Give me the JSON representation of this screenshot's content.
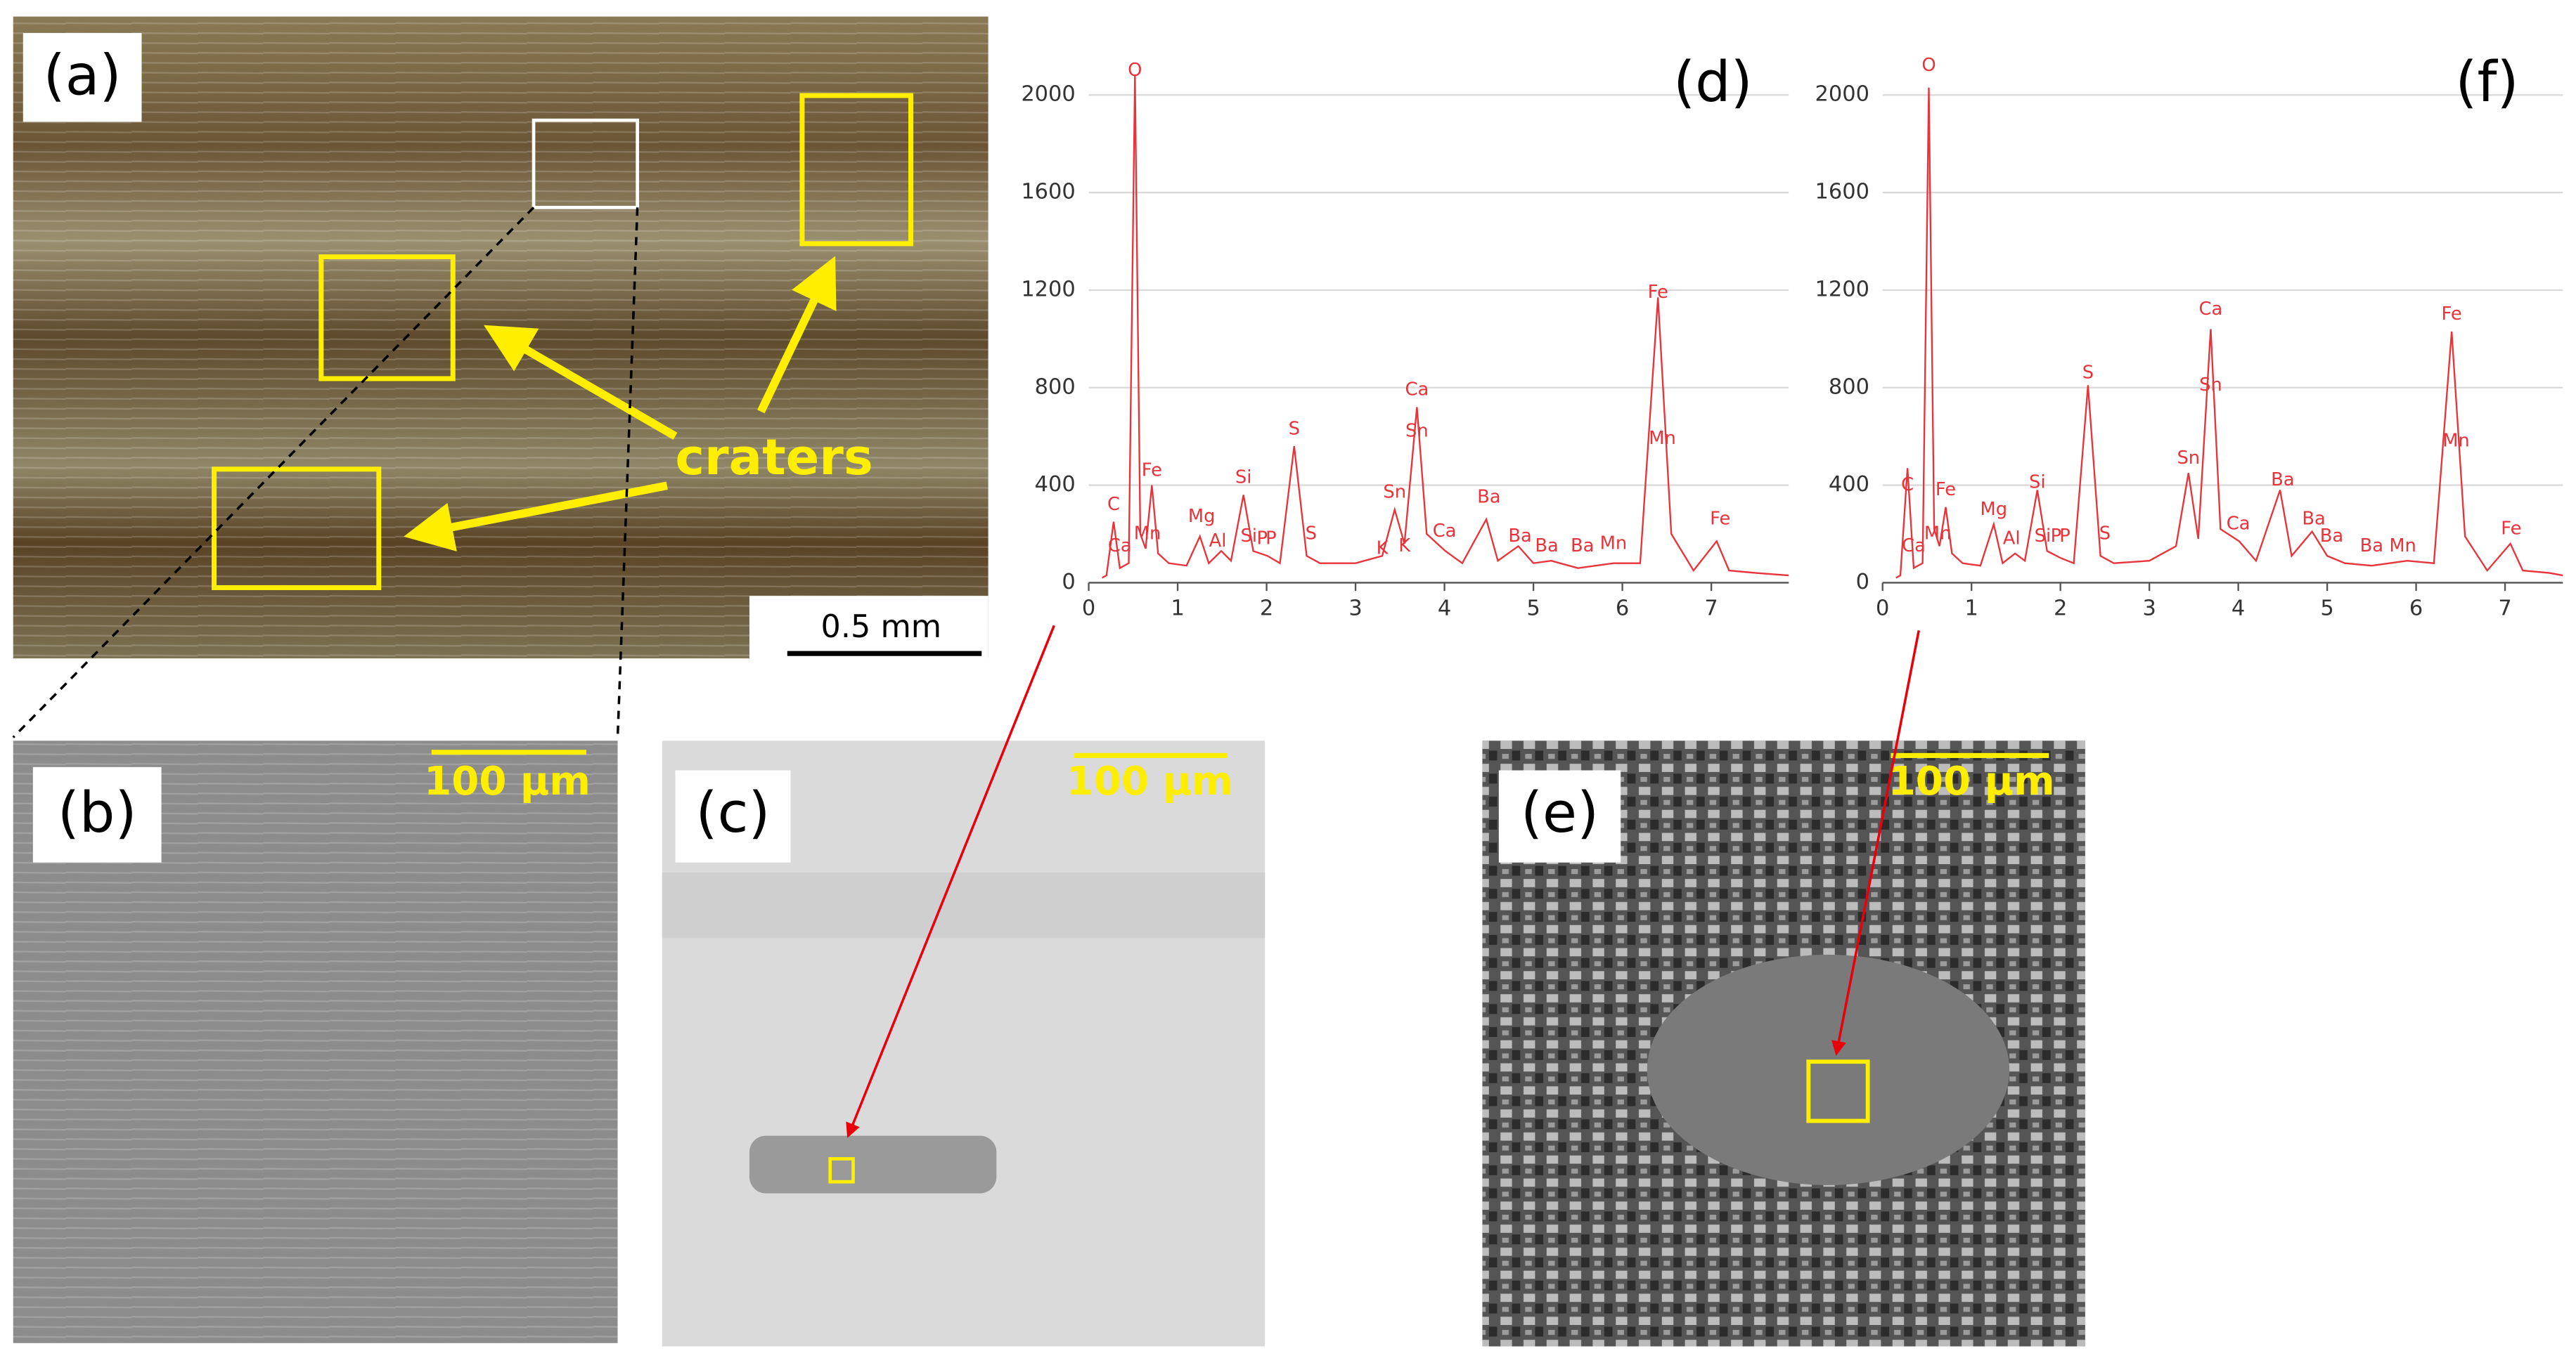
{
  "panels": {
    "a": {
      "label": "(a)",
      "annotation": "craters",
      "scale_bar": "0.5 mm"
    },
    "b": {
      "label": "(b)",
      "scale_bar": "100 µm"
    },
    "c": {
      "label": "(c)",
      "scale_bar": "100 µm"
    },
    "e": {
      "label": "(e)",
      "scale_bar": "100 µm"
    }
  },
  "chart_data": [
    {
      "type": "line",
      "label": "(d)",
      "x": [
        0.15,
        0.2,
        0.28,
        0.35,
        0.45,
        0.52,
        0.58,
        0.64,
        0.71,
        0.78,
        0.9,
        1.1,
        1.25,
        1.35,
        1.49,
        1.6,
        1.74,
        1.85,
        2.01,
        2.15,
        2.31,
        2.45,
        2.6,
        3.0,
        3.3,
        3.44,
        3.55,
        3.69,
        3.8,
        4.01,
        4.2,
        4.47,
        4.6,
        4.83,
        5.0,
        5.2,
        5.5,
        5.9,
        6.2,
        6.4,
        6.55,
        6.8,
        7.06,
        7.2,
        7.5,
        7.87
      ],
      "series": [
        {
          "color": "#e8333a",
          "values": [
            20,
            30,
            250,
            60,
            80,
            2080,
            200,
            140,
            400,
            120,
            80,
            70,
            190,
            80,
            130,
            90,
            360,
            130,
            110,
            80,
            560,
            110,
            80,
            80,
            110,
            300,
            160,
            720,
            200,
            130,
            80,
            260,
            90,
            150,
            80,
            90,
            60,
            80,
            80,
            1170,
            200,
            50,
            170,
            50,
            40,
            30
          ]
        }
      ],
      "xlim": [
        0,
        7.87
      ],
      "ylim": [
        0,
        2180
      ],
      "xticks": [
        0,
        1,
        2,
        3,
        4,
        5,
        6,
        7
      ],
      "yticks": [
        0,
        400,
        800,
        1200,
        1600,
        2000
      ],
      "grid": true,
      "peak_labels": [
        {
          "text": "O",
          "x": 0.52,
          "y": 2100
        },
        {
          "text": "C",
          "x": 0.28,
          "y": 320
        },
        {
          "text": "Ca",
          "x": 0.35,
          "y": 150
        },
        {
          "text": "Mn",
          "x": 0.66,
          "y": 200
        },
        {
          "text": "Fe",
          "x": 0.71,
          "y": 460
        },
        {
          "text": "Mg",
          "x": 1.27,
          "y": 270
        },
        {
          "text": "Al",
          "x": 1.45,
          "y": 170
        },
        {
          "text": "Si",
          "x": 1.74,
          "y": 430
        },
        {
          "text": "Si",
          "x": 1.8,
          "y": 190
        },
        {
          "text": "P",
          "x": 1.95,
          "y": 180
        },
        {
          "text": "P",
          "x": 2.05,
          "y": 180
        },
        {
          "text": "S",
          "x": 2.31,
          "y": 630
        },
        {
          "text": "S",
          "x": 2.5,
          "y": 200
        },
        {
          "text": "K",
          "x": 3.3,
          "y": 140
        },
        {
          "text": "Sn",
          "x": 3.44,
          "y": 370
        },
        {
          "text": "K",
          "x": 3.55,
          "y": 150
        },
        {
          "text": "Ca",
          "x": 3.69,
          "y": 790
        },
        {
          "text": "Sn",
          "x": 3.69,
          "y": 620
        },
        {
          "text": "Ca",
          "x": 4.0,
          "y": 210
        },
        {
          "text": "Ba",
          "x": 4.5,
          "y": 350
        },
        {
          "text": "Ba",
          "x": 4.85,
          "y": 190
        },
        {
          "text": "Ba",
          "x": 5.15,
          "y": 150
        },
        {
          "text": "Ba",
          "x": 5.55,
          "y": 150
        },
        {
          "text": "Mn",
          "x": 5.9,
          "y": 160
        },
        {
          "text": "Fe",
          "x": 6.4,
          "y": 1190
        },
        {
          "text": "Mn",
          "x": 6.45,
          "y": 590
        },
        {
          "text": "Fe",
          "x": 7.1,
          "y": 260
        }
      ]
    },
    {
      "type": "line",
      "label": "(f)",
      "x": [
        0.15,
        0.2,
        0.28,
        0.35,
        0.45,
        0.52,
        0.58,
        0.64,
        0.71,
        0.78,
        0.9,
        1.1,
        1.25,
        1.35,
        1.49,
        1.6,
        1.74,
        1.85,
        2.01,
        2.15,
        2.31,
        2.45,
        2.6,
        3.0,
        3.3,
        3.44,
        3.55,
        3.69,
        3.8,
        4.01,
        4.2,
        4.47,
        4.6,
        4.83,
        5.0,
        5.2,
        5.5,
        5.9,
        6.2,
        6.4,
        6.55,
        6.8,
        7.06,
        7.2,
        7.5,
        7.65
      ],
      "series": [
        {
          "color": "#e8333a",
          "values": [
            20,
            30,
            470,
            60,
            80,
            2030,
            220,
            150,
            310,
            120,
            80,
            70,
            240,
            80,
            120,
            90,
            380,
            130,
            100,
            80,
            810,
            110,
            80,
            90,
            150,
            450,
            180,
            1040,
            220,
            170,
            90,
            380,
            110,
            210,
            110,
            80,
            70,
            90,
            80,
            1030,
            190,
            50,
            160,
            50,
            40,
            30
          ]
        }
      ],
      "xlim": [
        0,
        7.65
      ],
      "ylim": [
        0,
        2180
      ],
      "xticks": [
        0,
        1,
        2,
        3,
        4,
        5,
        6,
        7
      ],
      "yticks": [
        0,
        400,
        800,
        1200,
        1600,
        2000
      ],
      "grid": true,
      "peak_labels": [
        {
          "text": "O",
          "x": 0.52,
          "y": 2120
        },
        {
          "text": "C",
          "x": 0.28,
          "y": 400
        },
        {
          "text": "Ca",
          "x": 0.35,
          "y": 150
        },
        {
          "text": "Mn",
          "x": 0.62,
          "y": 200
        },
        {
          "text": "Fe",
          "x": 0.71,
          "y": 380
        },
        {
          "text": "Mg",
          "x": 1.25,
          "y": 300
        },
        {
          "text": "Al",
          "x": 1.45,
          "y": 180
        },
        {
          "text": "Si",
          "x": 1.74,
          "y": 410
        },
        {
          "text": "Si",
          "x": 1.8,
          "y": 190
        },
        {
          "text": "P",
          "x": 1.95,
          "y": 190
        },
        {
          "text": "P",
          "x": 2.05,
          "y": 190
        },
        {
          "text": "S",
          "x": 2.31,
          "y": 860
        },
        {
          "text": "S",
          "x": 2.5,
          "y": 200
        },
        {
          "text": "Sn",
          "x": 3.44,
          "y": 510
        },
        {
          "text": "Ca",
          "x": 3.69,
          "y": 1120
        },
        {
          "text": "Sn",
          "x": 3.69,
          "y": 810
        },
        {
          "text": "Ca",
          "x": 4.0,
          "y": 240
        },
        {
          "text": "Ba",
          "x": 4.5,
          "y": 420
        },
        {
          "text": "Ba",
          "x": 4.85,
          "y": 260
        },
        {
          "text": "Ba",
          "x": 5.05,
          "y": 190
        },
        {
          "text": "Ba",
          "x": 5.5,
          "y": 150
        },
        {
          "text": "Mn",
          "x": 5.85,
          "y": 150
        },
        {
          "text": "Fe",
          "x": 6.4,
          "y": 1100
        },
        {
          "text": "Mn",
          "x": 6.45,
          "y": 580
        },
        {
          "text": "Fe",
          "x": 7.07,
          "y": 220
        }
      ]
    }
  ]
}
